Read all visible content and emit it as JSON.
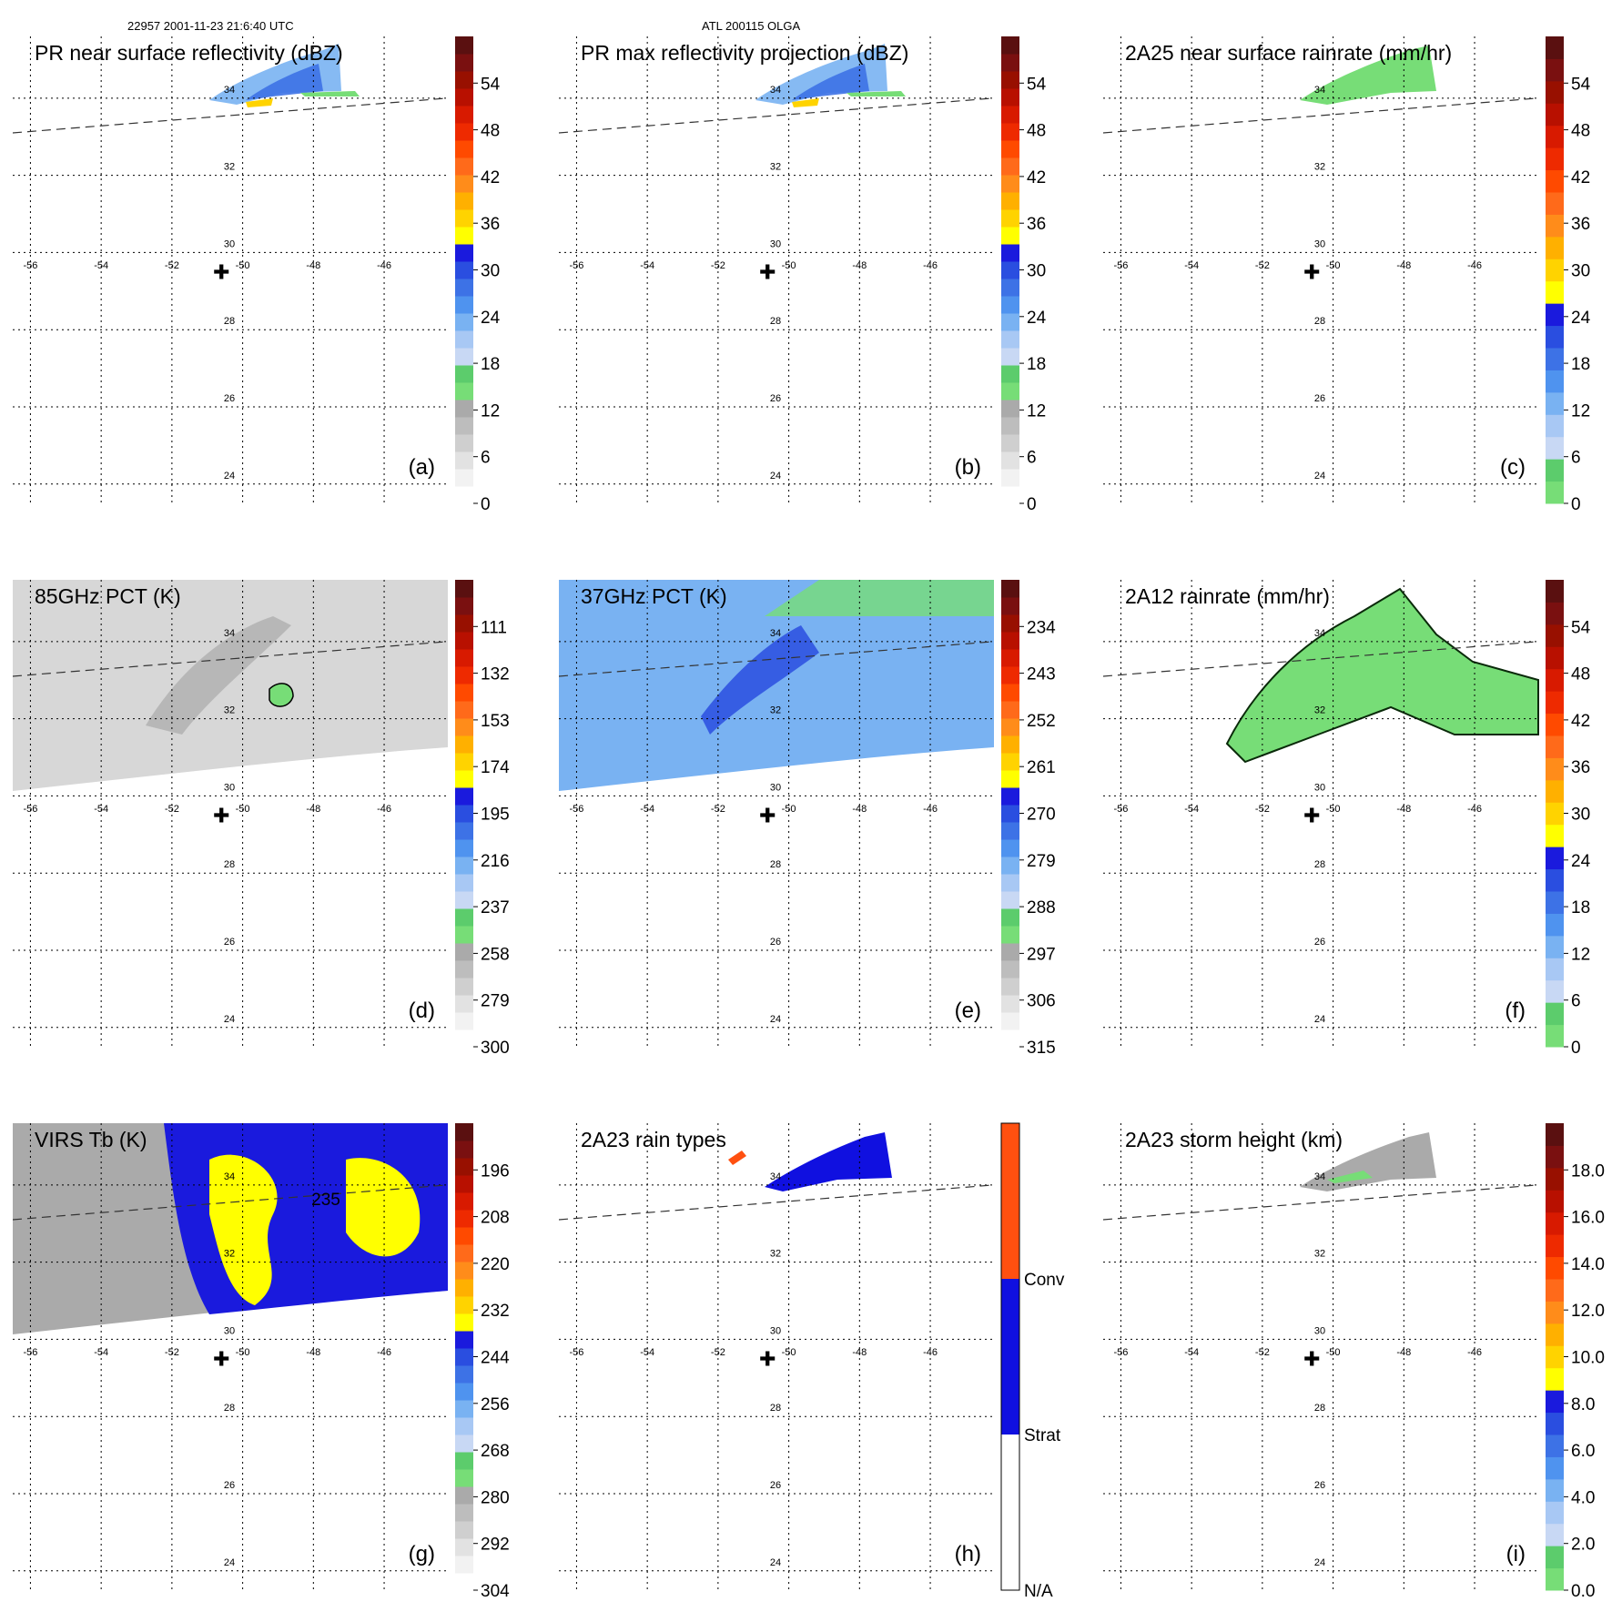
{
  "header": {
    "orbit_info": "22957 2001-11-23 21:6:40 UTC",
    "storm_info": "ATL 200115 OLGA"
  },
  "map": {
    "lon_labels": [
      "-56",
      "-54",
      "-52",
      "-50",
      "-48",
      "-46"
    ],
    "lat_labels": [
      "34",
      "32",
      "30",
      "28",
      "26",
      "24"
    ],
    "lon_values": [
      -56,
      -54,
      -52,
      -50,
      -48,
      -46
    ],
    "lat_values": [
      34,
      32,
      30,
      28,
      26,
      24
    ],
    "lon_range": [
      -56.5,
      -44.2
    ],
    "lat_range": [
      23.5,
      35.6
    ],
    "storm_center": {
      "lon": -50.6,
      "lat": 29.5
    },
    "swath_edge_line": {
      "lon": [
        -56.5,
        -44.2
      ],
      "lat": [
        33.1,
        34.0
      ]
    }
  },
  "colors": {
    "dbz_scale": [
      "#ffffff",
      "#f2f2f2",
      "#e2e2e2",
      "#cfcfcf",
      "#bdbdbd",
      "#aaaaaa",
      "#77dd77",
      "#5ccc6c",
      "#c8d8f4",
      "#a8c8f4",
      "#79b2f2",
      "#4f93ef",
      "#3d72e6",
      "#2a4ee0",
      "#1a1add",
      "#ffff00",
      "#ffd300",
      "#ffb000",
      "#ff8c1a",
      "#ff6a1a",
      "#ff4a00",
      "#ee2a00",
      "#d81a00",
      "#b81000",
      "#981000",
      "#7a1010",
      "#5a1010"
    ],
    "rain_type_conv": "#ff5010",
    "rain_type_strat": "#1010e0",
    "rain_type_na": "#ffffff"
  },
  "panels": [
    {
      "id": "a",
      "title": "PR near surface reflectivity (dBZ)",
      "label": "(a)",
      "colorbar_ticks": [
        "0",
        "6",
        "12",
        "18",
        "24",
        "30",
        "36",
        "42",
        "48",
        "54"
      ],
      "colorbar_type": "dbz"
    },
    {
      "id": "b",
      "title": "PR max reflectivity projection (dBZ)",
      "label": "(b)",
      "colorbar_ticks": [
        "0",
        "6",
        "12",
        "18",
        "24",
        "30",
        "36",
        "42",
        "48",
        "54"
      ],
      "colorbar_type": "dbz"
    },
    {
      "id": "c",
      "title": "2A25 near surface rainrate (mm/hr)",
      "label": "(c)",
      "colorbar_ticks": [
        "0",
        "6",
        "12",
        "18",
        "24",
        "30",
        "36",
        "42",
        "48",
        "54"
      ],
      "colorbar_type": "rain"
    },
    {
      "id": "d",
      "title": "85GHz PCT (K)",
      "label": "(d)",
      "colorbar_ticks": [
        "300",
        "279",
        "258",
        "237",
        "216",
        "195",
        "174",
        "153",
        "132",
        "111"
      ],
      "colorbar_type": "dbz"
    },
    {
      "id": "e",
      "title": "37GHz PCT (K)",
      "label": "(e)",
      "colorbar_ticks": [
        "315",
        "306",
        "297",
        "288",
        "279",
        "270",
        "261",
        "252",
        "243",
        "234"
      ],
      "colorbar_type": "dbz"
    },
    {
      "id": "f",
      "title": "2A12 rainrate (mm/hr)",
      "label": "(f)",
      "colorbar_ticks": [
        "0",
        "6",
        "12",
        "18",
        "24",
        "30",
        "36",
        "42",
        "48",
        "54"
      ],
      "colorbar_type": "rain"
    },
    {
      "id": "g",
      "title": "VIRS Tb (K)",
      "label": "(g)",
      "colorbar_ticks": [
        "304",
        "292",
        "280",
        "268",
        "256",
        "244",
        "232",
        "220",
        "208",
        "196"
      ],
      "colorbar_type": "dbz",
      "contour_label": "235"
    },
    {
      "id": "h",
      "title": "2A23 rain types",
      "label": "(h)",
      "colorbar_ticks": [
        "N/A",
        "Strat",
        "Conv"
      ],
      "colorbar_type": "types"
    },
    {
      "id": "i",
      "title": "2A23 storm height (km)",
      "label": "(i)",
      "colorbar_ticks": [
        "0.0",
        "2.0",
        "4.0",
        "6.0",
        "8.0",
        "10.0",
        "12.0",
        "14.0",
        "16.0",
        "18.0"
      ],
      "colorbar_type": "rain"
    }
  ]
}
